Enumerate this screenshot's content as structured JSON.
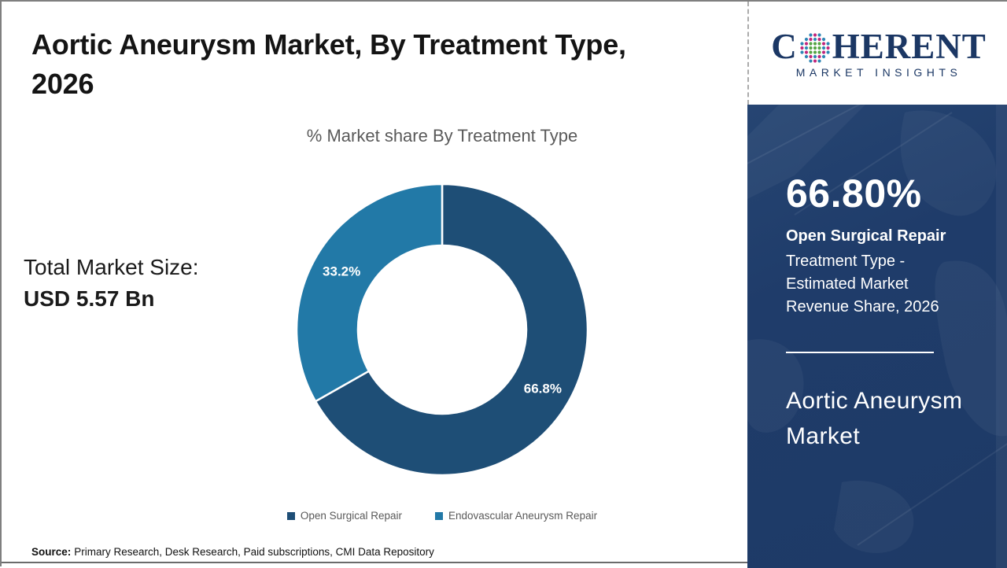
{
  "page": {
    "title_line1": "Aortic Aneurysm Market, By Treatment Type,",
    "title_line2": "2026"
  },
  "logo": {
    "letter_c": "C",
    "letters_rest": "HERENT",
    "tagline": "MARKET INSIGHTS",
    "navy": "#1b3764",
    "globe_colors": {
      "green": "#56a546",
      "magenta": "#c0267c",
      "teal": "#2e86b5"
    }
  },
  "chart_data": {
    "type": "pie",
    "donut": true,
    "title": "% Market share By Treatment Type",
    "categories": [
      "Open Surgical Repair",
      "Endovascular Aneurysm Repair"
    ],
    "values": [
      66.8,
      33.2
    ],
    "labels": [
      "66.8%",
      "33.2%"
    ],
    "colors": [
      "#1e4e76",
      "#2279a7"
    ],
    "start_angle_deg": 0,
    "direction": "clockwise",
    "legend_position": "bottom"
  },
  "stats": {
    "total_label": "Total Market Size:",
    "total_value": "USD 5.57 Bn"
  },
  "sidebar": {
    "bg_color": "#1f3c6a",
    "share_value": "66.80%",
    "share_name": "Open Surgical Repair",
    "share_desc_line1": "Treatment Type -",
    "share_desc_line2": "Estimated Market",
    "share_desc_line3": "Revenue Share, 2026",
    "market_line1": "Aortic Aneurysm",
    "market_line2": "Market"
  },
  "source": {
    "label": "Source:",
    "text": "Primary Research, Desk Research, Paid subscriptions, CMI Data Repository"
  }
}
